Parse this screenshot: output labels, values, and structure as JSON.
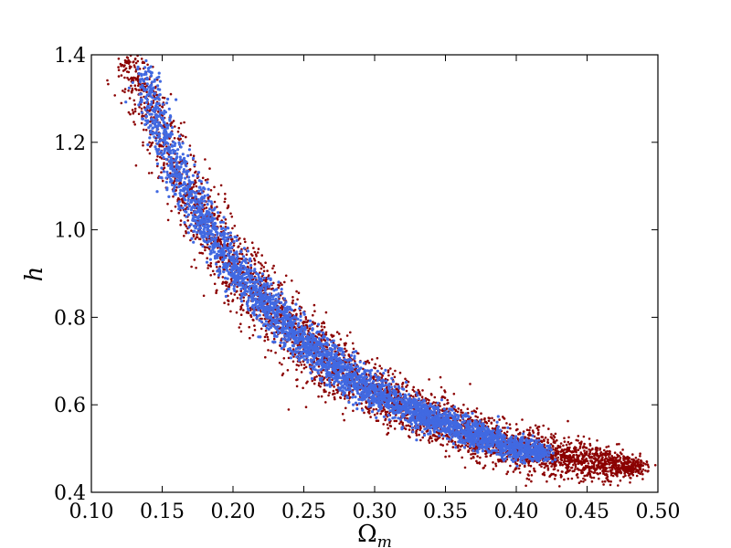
{
  "chart_data": {
    "type": "scatter",
    "xlabel": "Ω_m",
    "xlabel_base": "Ω",
    "xlabel_sub": "m",
    "ylabel": "h",
    "xlim": [
      0.1,
      0.5
    ],
    "ylim": [
      0.4,
      1.4
    ],
    "x_ticks": [
      "0.10",
      "0.15",
      "0.20",
      "0.25",
      "0.30",
      "0.35",
      "0.40",
      "0.45",
      "0.50"
    ],
    "y_ticks": [
      "0.4",
      "0.6",
      "0.8",
      "1.0",
      "1.2",
      "1.4"
    ],
    "grid": false,
    "series": [
      {
        "color": "#8b0000",
        "band": {
          "omega_m": [
            0.12,
            0.13,
            0.14,
            0.15,
            0.16,
            0.18,
            0.2,
            0.22,
            0.25,
            0.28,
            0.3,
            0.33,
            0.35,
            0.38,
            0.4,
            0.43,
            0.45,
            0.47,
            0.49
          ],
          "h_center": [
            1.4,
            1.36,
            1.29,
            1.21,
            1.13,
            1.02,
            0.92,
            0.84,
            0.74,
            0.67,
            0.63,
            0.58,
            0.56,
            0.52,
            0.5,
            0.48,
            0.47,
            0.46,
            0.46
          ],
          "h_halfwidth": [
            0.08,
            0.09,
            0.1,
            0.1,
            0.1,
            0.09,
            0.09,
            0.08,
            0.07,
            0.06,
            0.06,
            0.05,
            0.05,
            0.05,
            0.05,
            0.04,
            0.04,
            0.03,
            0.02
          ]
        }
      },
      {
        "color": "#4169e1",
        "band": {
          "omega_m": [
            0.135,
            0.14,
            0.15,
            0.16,
            0.18,
            0.2,
            0.22,
            0.25,
            0.28,
            0.3,
            0.33,
            0.35,
            0.38,
            0.4,
            0.42
          ],
          "h_center": [
            1.36,
            1.31,
            1.22,
            1.14,
            1.02,
            0.92,
            0.84,
            0.74,
            0.67,
            0.63,
            0.58,
            0.56,
            0.52,
            0.5,
            0.49
          ],
          "h_halfwidth": [
            0.05,
            0.06,
            0.06,
            0.06,
            0.055,
            0.05,
            0.05,
            0.045,
            0.04,
            0.035,
            0.03,
            0.03,
            0.03,
            0.025,
            0.02
          ]
        }
      }
    ]
  }
}
